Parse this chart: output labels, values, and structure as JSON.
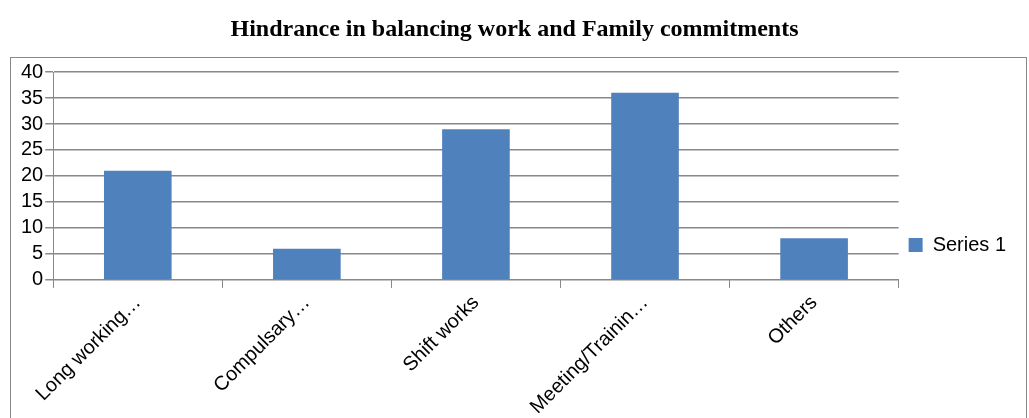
{
  "chart_data": {
    "type": "bar",
    "title": "Hindrance in balancing work and Family commitments",
    "categories": [
      "Long working…",
      "Compulsary…",
      "Shift works",
      "Meeting/Trainin…",
      "Others"
    ],
    "series": [
      {
        "name": "Series 1",
        "color": "#4f81bd",
        "values": [
          21,
          6,
          29,
          36,
          8
        ]
      }
    ],
    "ylim": [
      0,
      40
    ],
    "yticks": [
      0,
      5,
      10,
      15,
      20,
      25,
      30,
      35,
      40
    ],
    "grid": "y",
    "legend": "right"
  }
}
